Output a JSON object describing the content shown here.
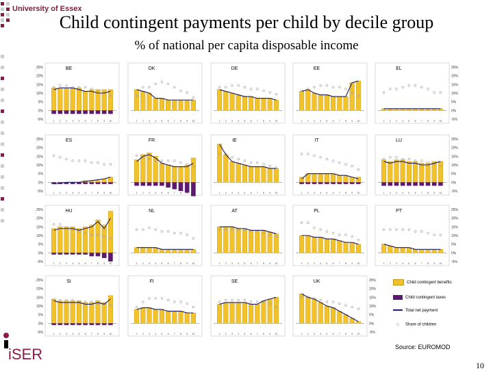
{
  "header": {
    "university": "University of Essex",
    "title": "Child contingent payments per child by decile group",
    "subtitle": "% of national per capita disposable income"
  },
  "footer": {
    "source": "Source: EUROMOD",
    "page_number": "10",
    "iser_logo": "iSER"
  },
  "colors": {
    "gold": "#f2c22a",
    "gold_edge": "#c09010",
    "purple": "#5c1a6e",
    "line": "#1a1a5a",
    "dots": "#a0a0a0",
    "logo_red": "#8b1a4a"
  },
  "legend": {
    "gold_label": "Child contingent benefits",
    "purple_label": "Child contingent taxes",
    "line_label": "Total net payment",
    "dots_label": "Share of children"
  },
  "chart_data": [
    {
      "type": "bar",
      "country": "BE",
      "left_ticks": [
        "25%",
        "20%",
        "15%",
        "10%",
        "5%",
        "0%",
        "-5%"
      ],
      "benefits": [
        13,
        13,
        13,
        13,
        13,
        11,
        12,
        12,
        12,
        12
      ],
      "taxes": [
        -2,
        -2,
        -2,
        -2,
        -2,
        -2,
        -2,
        -2,
        -2,
        -2
      ],
      "net": [
        12,
        13,
        13,
        13,
        12,
        11,
        11,
        10,
        10,
        11
      ],
      "share": [
        11,
        12,
        12,
        11,
        11,
        11,
        10,
        9,
        8,
        6
      ]
    },
    {
      "type": "bar",
      "country": "DK",
      "benefits": [
        12,
        11,
        10,
        7,
        7,
        6,
        6,
        6,
        6,
        6
      ],
      "taxes": [
        0,
        0,
        0,
        0,
        0,
        0,
        0,
        0,
        0,
        0
      ],
      "net": [
        12,
        11,
        10,
        7,
        7,
        6,
        6,
        6,
        6,
        6
      ],
      "share": [
        6,
        11,
        11,
        13,
        14,
        13,
        11,
        9,
        8,
        5
      ]
    },
    {
      "type": "bar",
      "country": "DE",
      "benefits": [
        12,
        11,
        10,
        9,
        8,
        8,
        7,
        7,
        7,
        6
      ],
      "taxes": [
        0,
        0,
        0,
        0,
        0,
        0,
        0,
        0,
        0,
        0
      ],
      "net": [
        12,
        11,
        10,
        9,
        8,
        8,
        7,
        7,
        7,
        6
      ],
      "share": [
        11,
        11,
        12,
        12,
        11,
        10,
        10,
        9,
        8,
        7
      ]
    },
    {
      "type": "bar",
      "country": "EE",
      "benefits": [
        11,
        12,
        10,
        9,
        9,
        8,
        8,
        8,
        16,
        17
      ],
      "taxes": [
        0,
        0,
        0,
        0,
        0,
        0,
        0,
        0,
        0,
        0
      ],
      "net": [
        11,
        12,
        10,
        9,
        9,
        8,
        8,
        8,
        16,
        17
      ],
      "share": [
        9,
        10,
        11,
        12,
        12,
        11,
        11,
        10,
        8,
        6
      ]
    },
    {
      "type": "bar",
      "country": "EL",
      "right_ticks": [
        "25%",
        "20%",
        "15%",
        "10%",
        "5%",
        "0%",
        "-5%"
      ],
      "benefits": [
        1,
        1,
        1,
        1,
        1,
        1,
        1,
        1,
        1,
        1
      ],
      "taxes": [
        0,
        0,
        0,
        0,
        0,
        0,
        0,
        0,
        0,
        0
      ],
      "net": [
        1,
        1,
        1,
        1,
        1,
        1,
        1,
        1,
        1,
        1
      ],
      "share": [
        8,
        10,
        10,
        11,
        12,
        12,
        11,
        10,
        8,
        8
      ]
    },
    {
      "type": "bar",
      "country": "ES",
      "left_ticks": [
        "25%",
        "20%",
        "15%",
        "10%",
        "5%",
        "0%",
        "-5%"
      ],
      "benefits": [
        0,
        0,
        0,
        0,
        0,
        1,
        1,
        1,
        2,
        3
      ],
      "taxes": [
        -1,
        -1,
        -1,
        -1,
        -1,
        -1,
        -1,
        -1,
        -1,
        -1
      ],
      "net": [
        -1,
        -0.5,
        0,
        0,
        0,
        0.5,
        1,
        1.5,
        2,
        3
      ],
      "share": [
        13,
        12,
        11,
        10,
        10,
        10,
        9,
        9,
        8,
        8
      ]
    },
    {
      "type": "bar",
      "country": "FR",
      "benefits": [
        13,
        16,
        17,
        15,
        11,
        10,
        9,
        9,
        10,
        14
      ],
      "taxes": [
        -2,
        -2,
        -2,
        -2,
        -2,
        -3,
        -4,
        -5,
        -6,
        -8
      ],
      "net": [
        12,
        15,
        16,
        14,
        11,
        10,
        9,
        9,
        9,
        11
      ],
      "share": [
        13,
        12,
        11,
        10,
        10,
        10,
        10,
        9,
        8,
        7
      ]
    },
    {
      "type": "bar",
      "country": "IE",
      "benefits": [
        22,
        16,
        12,
        11,
        10,
        9,
        9,
        9,
        8,
        8
      ],
      "taxes": [
        0,
        0,
        0,
        0,
        0,
        0,
        0,
        0,
        0,
        0
      ],
      "net": [
        22,
        16,
        12,
        11,
        10,
        9,
        9,
        9,
        8,
        8
      ],
      "share": [
        14,
        14,
        12,
        11,
        10,
        9,
        9,
        8,
        7,
        6
      ]
    },
    {
      "type": "bar",
      "country": "IT",
      "benefits": [
        3,
        5,
        5,
        5,
        5,
        5,
        4,
        4,
        3,
        3
      ],
      "taxes": [
        -1,
        -1,
        -1,
        -1,
        -1,
        -1,
        -1,
        -1,
        -1,
        -1
      ],
      "net": [
        2,
        5,
        5,
        5,
        5,
        5,
        4,
        4,
        3,
        2
      ],
      "share": [
        14,
        14,
        13,
        12,
        11,
        10,
        9,
        8,
        7,
        5
      ]
    },
    {
      "type": "bar",
      "country": "LU",
      "right_ticks": [
        "25%",
        "20%",
        "15%",
        "10%",
        "5%",
        "0%",
        "-5%"
      ],
      "benefits": [
        13,
        12,
        13,
        13,
        12,
        12,
        11,
        11,
        12,
        12
      ],
      "taxes": [
        -2,
        -2,
        -2,
        -2,
        -2,
        -2,
        -2,
        -2,
        -2,
        -2
      ],
      "net": [
        12,
        11,
        12,
        12,
        11,
        11,
        10,
        10,
        11,
        12
      ],
      "share": [
        11,
        12,
        12,
        11,
        11,
        10,
        10,
        9,
        8,
        7
      ]
    },
    {
      "type": "bar",
      "country": "HU",
      "left_ticks": [
        "25%",
        "20%",
        "15%",
        "10%",
        "5%",
        "0%",
        "-5%"
      ],
      "benefits": [
        14,
        15,
        15,
        15,
        14,
        15,
        16,
        19,
        16,
        24
      ],
      "taxes": [
        -1,
        -1,
        -1,
        -1,
        -1,
        -1,
        -2,
        -2,
        -3,
        -5
      ],
      "net": [
        13,
        14,
        14,
        14,
        13,
        14,
        15,
        18,
        14,
        20
      ],
      "share": [
        14,
        14,
        12,
        11,
        10,
        9,
        8,
        8,
        7,
        6
      ]
    },
    {
      "type": "bar",
      "country": "NL",
      "benefits": [
        3,
        3,
        3,
        3,
        2,
        2,
        2,
        2,
        2,
        2
      ],
      "taxes": [
        0,
        0,
        0,
        0,
        0,
        0,
        0,
        0,
        0,
        0
      ],
      "net": [
        3,
        3,
        3,
        3,
        2,
        2,
        2,
        2,
        2,
        2
      ],
      "share": [
        11,
        11,
        12,
        11,
        10,
        10,
        9,
        9,
        8,
        6
      ]
    },
    {
      "type": "bar",
      "country": "AT",
      "benefits": [
        15,
        15,
        15,
        14,
        14,
        13,
        13,
        13,
        12,
        11
      ],
      "taxes": [
        0,
        0,
        0,
        0,
        0,
        0,
        0,
        0,
        0,
        0
      ],
      "net": [
        15,
        15,
        15,
        14,
        14,
        13,
        13,
        13,
        12,
        11
      ],
      "share": [
        11,
        11,
        11,
        11,
        11,
        10,
        10,
        9,
        8,
        7
      ]
    },
    {
      "type": "bar",
      "country": "PL",
      "benefits": [
        10,
        10,
        9,
        9,
        8,
        8,
        7,
        6,
        6,
        5
      ],
      "taxes": [
        0,
        0,
        0,
        0,
        0,
        0,
        0,
        0,
        0,
        0
      ],
      "net": [
        10,
        10,
        9,
        9,
        8,
        8,
        7,
        6,
        6,
        5
      ],
      "share": [
        15,
        15,
        12,
        11,
        10,
        9,
        8,
        8,
        7,
        5
      ]
    },
    {
      "type": "bar",
      "country": "PT",
      "right_ticks": [
        "25%",
        "20%",
        "15%",
        "10%",
        "5%",
        "0%",
        "-5%"
      ],
      "benefits": [
        5,
        4,
        3,
        3,
        3,
        2,
        2,
        2,
        2,
        2
      ],
      "taxes": [
        0,
        0,
        0,
        0,
        0,
        0,
        0,
        0,
        0,
        0
      ],
      "net": [
        5,
        4,
        3,
        3,
        3,
        2,
        2,
        2,
        2,
        2
      ],
      "share": [
        11,
        11,
        11,
        11,
        11,
        10,
        10,
        9,
        8,
        8
      ]
    },
    {
      "type": "bar",
      "country": "SI",
      "left_ticks": [
        "25%",
        "20%",
        "15%",
        "10%",
        "5%",
        "0%",
        "-5%"
      ],
      "benefits": [
        14,
        13,
        13,
        13,
        13,
        12,
        12,
        13,
        12,
        16
      ],
      "taxes": [
        -1,
        -1,
        -1,
        -1,
        -1,
        -1,
        -1,
        -1,
        -1,
        -1
      ],
      "net": [
        13,
        12,
        12,
        12,
        12,
        11,
        11,
        12,
        11,
        14
      ],
      "share": [
        11,
        11,
        11,
        11,
        10,
        10,
        10,
        9,
        9,
        8
      ]
    },
    {
      "type": "bar",
      "country": "FI",
      "benefits": [
        8,
        9,
        9,
        8,
        8,
        7,
        7,
        7,
        6,
        6
      ],
      "taxes": [
        0,
        0,
        0,
        0,
        0,
        0,
        0,
        0,
        0,
        0
      ],
      "net": [
        8,
        9,
        9,
        8,
        8,
        7,
        7,
        7,
        6,
        6
      ],
      "share": [
        7,
        10,
        12,
        12,
        12,
        11,
        10,
        10,
        9,
        7
      ]
    },
    {
      "type": "bar",
      "country": "SE",
      "benefits": [
        11,
        12,
        12,
        12,
        12,
        11,
        11,
        13,
        14,
        15
      ],
      "taxes": [
        0,
        0,
        0,
        0,
        0,
        0,
        0,
        0,
        0,
        0
      ],
      "net": [
        11,
        12,
        12,
        12,
        12,
        11,
        11,
        13,
        14,
        15
      ],
      "share": [
        10,
        11,
        11,
        11,
        11,
        10,
        10,
        10,
        9,
        7
      ]
    },
    {
      "type": "bar",
      "country": "UK",
      "right_ticks": [
        "25%",
        "20%",
        "15%",
        "10%",
        "5%",
        "0%",
        "-5%"
      ],
      "benefits": [
        17,
        15,
        14,
        12,
        10,
        9,
        7,
        5,
        3,
        1
      ],
      "taxes": [
        0,
        0,
        0,
        0,
        0,
        0,
        0,
        0,
        0,
        0
      ],
      "net": [
        17,
        15,
        14,
        12,
        10,
        9,
        7,
        5,
        3,
        1
      ],
      "share": [
        13,
        13,
        12,
        11,
        10,
        10,
        9,
        8,
        7,
        6
      ]
    }
  ]
}
